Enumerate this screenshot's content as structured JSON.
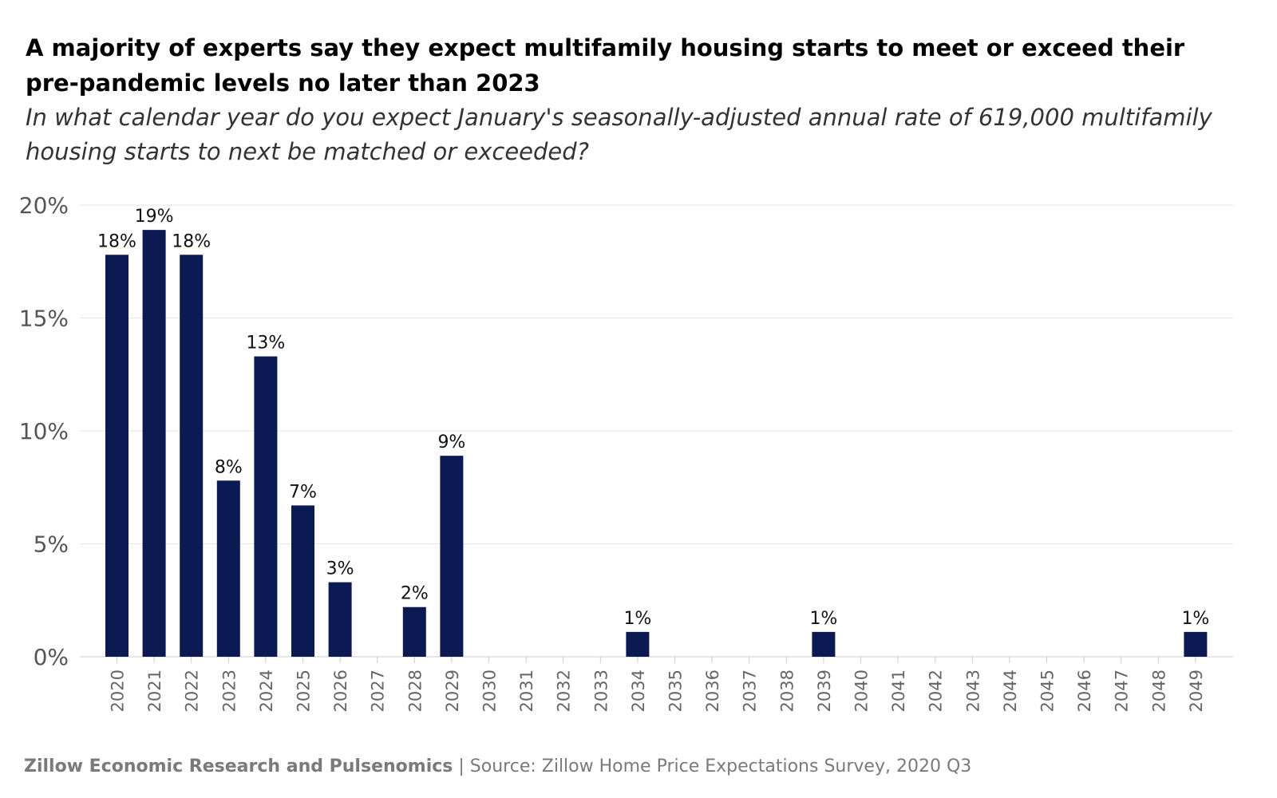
{
  "title": "A majority of experts say they expect multifamily housing starts to meet or exceed their pre-pandemic levels no later than 2023",
  "subtitle": "In what calendar year do you expect January's seasonally-adjusted annual rate of 619,000 multifamily housing starts to next be matched or exceeded?",
  "footer": {
    "org": "Zillow Economic Research and Pulsenomics",
    "separator": "|",
    "source": "Source: Zillow Home Price Expectations Survey, 2020 Q3"
  },
  "chart_data": {
    "type": "bar",
    "categories": [
      "2020",
      "2021",
      "2022",
      "2023",
      "2024",
      "2025",
      "2026",
      "2027",
      "2028",
      "2029",
      "2030",
      "2031",
      "2032",
      "2033",
      "2034",
      "2035",
      "2036",
      "2037",
      "2038",
      "2039",
      "2040",
      "2041",
      "2042",
      "2043",
      "2044",
      "2045",
      "2046",
      "2047",
      "2048",
      "2049"
    ],
    "values": [
      17.8,
      18.9,
      17.8,
      7.8,
      13.3,
      6.7,
      3.3,
      0,
      2.2,
      8.9,
      0,
      0,
      0,
      0,
      1.1,
      0,
      0,
      0,
      0,
      1.1,
      0,
      0,
      0,
      0,
      0,
      0,
      0,
      0,
      0,
      1.1
    ],
    "labels": [
      "18%",
      "19%",
      "18%",
      "8%",
      "13%",
      "7%",
      "3%",
      "",
      "2%",
      "9%",
      "",
      "",
      "",
      "",
      "1%",
      "",
      "",
      "",
      "",
      "1%",
      "",
      "",
      "",
      "",
      "",
      "",
      "",
      "",
      "",
      "1%"
    ],
    "yticks": [
      "0%",
      "5%",
      "10%",
      "15%",
      "20%"
    ],
    "ylim": [
      0,
      20
    ],
    "grid": true,
    "bar_color": "#0b1a52"
  }
}
